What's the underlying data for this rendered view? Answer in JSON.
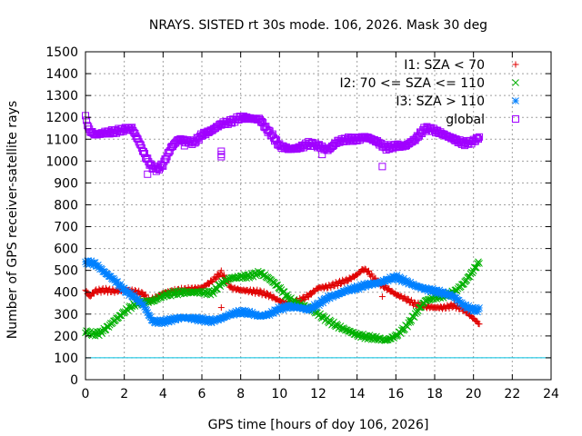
{
  "chart_data": {
    "type": "scatter",
    "title": "NRAYS. SISTED rt 30s mode. 106, 2026. Mask 30 deg",
    "xlabel": "GPS time [hours of doy 106, 2026]",
    "ylabel": "Number of GPS receiver-satellite rays",
    "xlim": [
      0,
      24
    ],
    "ylim": [
      0,
      1500
    ],
    "xticks": [
      "0",
      "2",
      "4",
      "6",
      "8",
      "10",
      "12",
      "14",
      "16",
      "18",
      "20",
      "22",
      "24"
    ],
    "yticks": [
      "0",
      "100",
      "200",
      "300",
      "400",
      "500",
      "600",
      "700",
      "800",
      "900",
      "1000",
      "1100",
      "1200",
      "1300",
      "1400",
      "1500"
    ],
    "grid": true,
    "legend_position": "top-right",
    "reference_line": {
      "y": 100,
      "color": "#00c0e0"
    },
    "series": [
      {
        "name": "I1: SZA < 70",
        "marker": "+",
        "color": "#e00000",
        "x": [
          0,
          0.2,
          0.5,
          1,
          1.5,
          2,
          2.5,
          3,
          3.3,
          3.5,
          4,
          4.5,
          5,
          5.5,
          6,
          6.5,
          7,
          7.5,
          8,
          8.5,
          9,
          9.5,
          10,
          10.5,
          11,
          11.5,
          12,
          12.5,
          13,
          13.5,
          14,
          14.3,
          14.5,
          15,
          15.5,
          16,
          16.5,
          17,
          17.5,
          18,
          18.5,
          19,
          19.5,
          20,
          20.3
        ],
        "y": [
          410,
          380,
          405,
          410,
          405,
          410,
          405,
          390,
          360,
          370,
          395,
          405,
          410,
          415,
          420,
          450,
          490,
          420,
          410,
          405,
          400,
          385,
          360,
          345,
          360,
          385,
          420,
          425,
          440,
          455,
          480,
          505,
          500,
          450,
          420,
          390,
          370,
          345,
          335,
          330,
          330,
          340,
          320,
          280,
          255
        ]
      },
      {
        "name": "I2: 70 <= SZA <= 110",
        "marker": "x",
        "color": "#00b000",
        "x": [
          0,
          0.3,
          0.7,
          1,
          1.5,
          2,
          2.5,
          3,
          3.5,
          4,
          4.5,
          5,
          5.5,
          6,
          6.5,
          7,
          7.5,
          8,
          8.5,
          9,
          9.5,
          10,
          10.5,
          11,
          11.5,
          12,
          12.5,
          13,
          13.5,
          14,
          14.5,
          15,
          15.5,
          16,
          16.5,
          17,
          17.5,
          18,
          18.5,
          19,
          19.5,
          20,
          20.3
        ],
        "y": [
          220,
          210,
          210,
          230,
          270,
          310,
          345,
          355,
          360,
          385,
          395,
          400,
          400,
          400,
          395,
          440,
          465,
          470,
          475,
          490,
          460,
          420,
          370,
          345,
          330,
          300,
          270,
          245,
          225,
          205,
          195,
          190,
          180,
          200,
          240,
          300,
          360,
          375,
          385,
          400,
          440,
          500,
          540
        ]
      },
      {
        "name": "I3: SZA > 110",
        "marker": "*",
        "color": "#0080ff",
        "x": [
          0,
          0.5,
          1,
          1.5,
          2,
          2.5,
          3,
          3.3,
          3.5,
          4,
          4.5,
          5,
          5.5,
          6,
          6.5,
          7,
          7.5,
          8,
          8.5,
          9,
          9.5,
          10,
          10.5,
          11,
          11.5,
          12,
          12.5,
          13,
          13.5,
          14,
          14.5,
          15,
          15.5,
          16,
          16.5,
          17,
          17.5,
          18,
          18.5,
          19,
          19.5,
          20,
          20.3
        ],
        "y": [
          540,
          530,
          490,
          455,
          410,
          380,
          340,
          290,
          265,
          265,
          275,
          285,
          280,
          275,
          268,
          280,
          300,
          310,
          305,
          290,
          300,
          325,
          335,
          330,
          320,
          345,
          375,
          390,
          410,
          420,
          435,
          440,
          455,
          470,
          450,
          430,
          415,
          405,
          395,
          380,
          340,
          320,
          320
        ]
      },
      {
        "name": "global",
        "marker": "square",
        "color": "#a000ff",
        "x": [
          0,
          0.2,
          0.5,
          1,
          1.5,
          2,
          2.4,
          2.8,
          3.1,
          3.4,
          3.7,
          4,
          4.4,
          4.8,
          5.2,
          5.6,
          6,
          6.5,
          7,
          7.5,
          8,
          8.5,
          9,
          9.3,
          9.6,
          10,
          10.5,
          11,
          11.5,
          12,
          12.5,
          13,
          13.5,
          14,
          14.5,
          15,
          15.5,
          16,
          16.5,
          17,
          17.5,
          18,
          18.5,
          19,
          19.5,
          20,
          20.3
        ],
        "y": [
          1200,
          1140,
          1120,
          1130,
          1135,
          1145,
          1150,
          1080,
          1020,
          975,
          960,
          985,
          1060,
          1100,
          1090,
          1085,
          1120,
          1140,
          1170,
          1180,
          1200,
          1195,
          1190,
          1150,
          1120,
          1070,
          1055,
          1060,
          1080,
          1070,
          1050,
          1090,
          1100,
          1100,
          1110,
          1090,
          1060,
          1070,
          1070,
          1100,
          1150,
          1140,
          1120,
          1100,
          1080,
          1090,
          1110
        ]
      }
    ],
    "outliers": {
      "I1: SZA < 70": [
        [
          7.0,
          330
        ],
        [
          15.3,
          380
        ]
      ],
      "global": [
        [
          3.2,
          940
        ],
        [
          5.1,
          1070
        ],
        [
          7.0,
          1045
        ],
        [
          7.0,
          1030
        ],
        [
          7.0,
          1020
        ],
        [
          15.3,
          975
        ],
        [
          12.2,
          1030
        ]
      ]
    }
  }
}
